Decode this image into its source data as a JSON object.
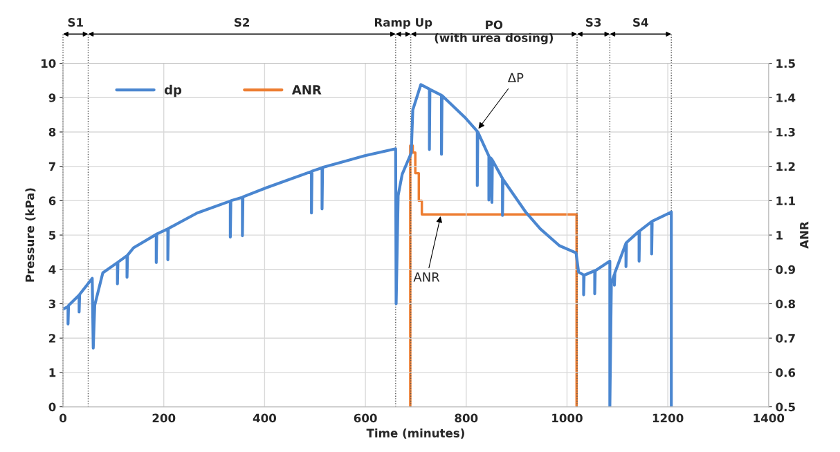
{
  "chart_data": {
    "type": "line",
    "xlabel": "Time (minutes)",
    "ylabel": "Pressure (kPa)",
    "y2label": "ANR",
    "series": [
      {
        "name": "dp",
        "color": "#4a86d0",
        "x": [
          0,
          10,
          10,
          11,
          32,
          32,
          33,
          58,
          60,
          63,
          79,
          108,
          108,
          109,
          127,
          127,
          128,
          140,
          185,
          185,
          186,
          208,
          208,
          209,
          266,
          332,
          332,
          333,
          356,
          356,
          357,
          404,
          493,
          493,
          494,
          514,
          514,
          515,
          599,
          660,
          661,
          665,
          673,
          691,
          694,
          710,
          727,
          727,
          728,
          751,
          751,
          752,
          799,
          820,
          822,
          822,
          823,
          845,
          845,
          848,
          851,
          851,
          852,
          870,
          872,
          872,
          873,
          918,
          947,
          985,
          1018,
          1023,
          1033,
          1033,
          1034,
          1037,
          1055,
          1055,
          1056,
          1085,
          1085,
          1088,
          1094,
          1094,
          1095,
          1117,
          1117,
          1118,
          1143,
          1143,
          1144,
          1168,
          1168,
          1169,
          1207,
          1207
        ],
        "values": [
          2.84,
          2.92,
          2.41,
          2.95,
          3.25,
          2.76,
          3.27,
          3.74,
          1.71,
          2.96,
          3.9,
          4.2,
          3.58,
          4.21,
          4.4,
          3.77,
          4.41,
          4.63,
          5.02,
          4.2,
          5.03,
          5.18,
          4.28,
          5.19,
          5.64,
          5.99,
          4.94,
          6.0,
          6.1,
          4.98,
          6.11,
          6.38,
          6.85,
          5.64,
          6.86,
          6.96,
          5.76,
          6.97,
          7.31,
          7.51,
          3.0,
          6.15,
          6.77,
          7.39,
          8.64,
          9.38,
          9.25,
          7.49,
          9.24,
          9.07,
          7.35,
          9.06,
          8.4,
          8.05,
          8.02,
          6.44,
          8.0,
          7.3,
          6.02,
          7.25,
          7.2,
          5.95,
          7.18,
          6.7,
          6.65,
          5.57,
          6.62,
          5.67,
          5.18,
          4.69,
          4.48,
          3.92,
          3.84,
          3.26,
          3.84,
          3.85,
          3.96,
          3.29,
          3.96,
          4.24,
          0,
          3.6,
          3.85,
          3.54,
          3.9,
          4.76,
          4.08,
          4.78,
          5.11,
          4.24,
          5.12,
          5.39,
          4.45,
          5.4,
          5.67,
          0
        ]
      },
      {
        "name": "ANR",
        "color": "#ed7d31",
        "axis": "y2",
        "x": [
          689,
          689,
          694,
          694,
          699,
          699,
          706,
          706,
          712,
          712,
          1019,
          1019
        ],
        "values": [
          0.5,
          1.26,
          1.26,
          1.24,
          1.24,
          1.18,
          1.18,
          1.1,
          1.1,
          1.06,
          1.06,
          0.5
        ]
      }
    ],
    "xlim": [
      0,
      1400
    ],
    "xticks": [
      0,
      200,
      400,
      600,
      800,
      1000,
      1200,
      1400
    ],
    "ylim": [
      0,
      10
    ],
    "yticks": [
      0,
      1,
      2,
      3,
      4,
      5,
      6,
      7,
      8,
      9,
      10
    ],
    "y2lim": [
      0.5,
      1.5
    ],
    "y2ticks": [
      0.5,
      0.6,
      0.7,
      0.8,
      0.9,
      {
        "value": 1,
        "label": "1"
      },
      1.1,
      1.2,
      1.3,
      1.4,
      1.5
    ],
    "grid": true,
    "legend": "top left",
    "line_style": "solid",
    "marker": "none",
    "ref_lines": [
      {
        "axis": "x",
        "value": 0,
        "line_style": "dotted",
        "color": "#555555"
      },
      {
        "axis": "x",
        "value": 50,
        "line_style": "dotted",
        "color": "#555555"
      },
      {
        "axis": "x",
        "value": 660,
        "line_style": "dotted",
        "color": "#555555"
      },
      {
        "axis": "x",
        "value": 690,
        "line_style": "dotted",
        "color": "#555555"
      },
      {
        "axis": "x",
        "value": 1020,
        "line_style": "dotted",
        "color": "#555555"
      },
      {
        "axis": "x",
        "value": 1085,
        "line_style": "dotted",
        "color": "#555555"
      },
      {
        "axis": "x",
        "value": 1207,
        "line_style": "dotted",
        "color": "#555555"
      }
    ],
    "annotations": [
      "S1",
      "S2",
      "Ramp Up",
      "PO\n(with urea dosing)",
      "S3",
      "S4",
      {
        "text": "ΔP",
        "x": 822,
        "y": 8.05
      },
      {
        "text": "ANR",
        "x": 750,
        "y": 5.6
      }
    ]
  }
}
